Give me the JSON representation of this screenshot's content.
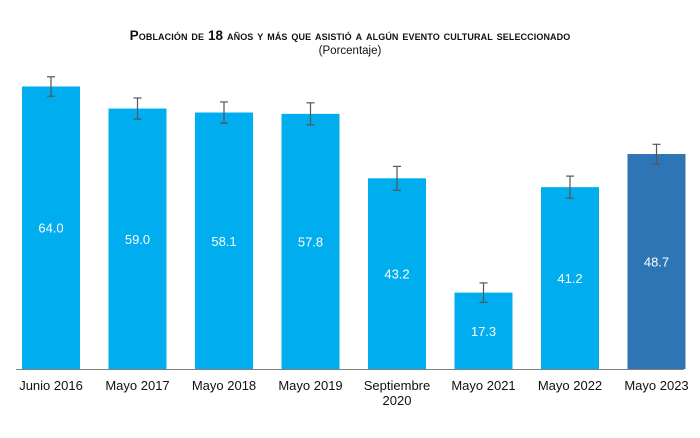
{
  "chart_data": {
    "type": "bar",
    "title": "Población de 18 años y más que asistió a algún evento cultural seleccionado",
    "subtitle": "(Porcentaje)",
    "categories": [
      "Junio 2016",
      "Mayo 2017",
      "Mayo 2018",
      "Mayo 2019",
      "Septiembre 2020",
      "Mayo 2021",
      "Mayo 2022",
      "Mayo 2023"
    ],
    "tick_lines": [
      [
        "Junio 2016"
      ],
      [
        "Mayo 2017"
      ],
      [
        "Mayo 2018"
      ],
      [
        "Mayo 2019"
      ],
      [
        "Septiembre",
        "2020"
      ],
      [
        "Mayo 2021"
      ],
      [
        "Mayo 2022"
      ],
      [
        "Mayo 2023"
      ]
    ],
    "values": [
      64.0,
      59.0,
      58.1,
      57.8,
      43.2,
      17.3,
      41.2,
      48.7
    ],
    "value_labels": [
      "64.0",
      "59.0",
      "58.1",
      "57.8",
      "43.2",
      "17.3",
      "41.2",
      "48.7"
    ],
    "error_margin": [
      2.2,
      2.4,
      2.4,
      2.5,
      2.7,
      2.2,
      2.5,
      2.2
    ],
    "colors": {
      "bar": "#00ADEF",
      "highlight": "#2E75B6",
      "error_bar": "#555555"
    },
    "highlight_index": 7,
    "ylim": [
      0,
      70
    ],
    "xlabel": "",
    "ylabel": "",
    "grid": false,
    "legend": "none"
  }
}
